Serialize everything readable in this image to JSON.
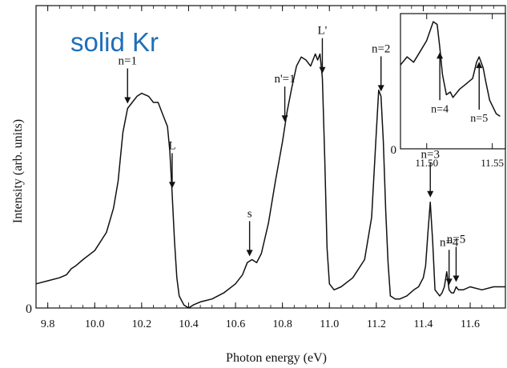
{
  "chart_data": {
    "type": "line",
    "title": "solid Kr",
    "title_color": "#1f6fb8",
    "xlabel": "Photon energy (eV)",
    "ylabel": "Intensity (arb. units)",
    "xlim": [
      9.75,
      11.75
    ],
    "ylim": [
      0,
      1.0
    ],
    "x_ticks": [
      9.8,
      10.0,
      10.2,
      10.4,
      10.6,
      10.8,
      11.0,
      11.2,
      11.4,
      11.6
    ],
    "x_tick_labels": [
      "9.8",
      "10.0",
      "10.2",
      "10.4",
      "10.6",
      "10.8",
      "11.0",
      "11.2",
      "11.4",
      "11.6"
    ],
    "y_tick_labels": [
      "0"
    ],
    "line_color": "#111111",
    "series": [
      {
        "x": [
          9.75,
          9.8,
          9.85,
          9.88,
          9.9,
          9.92,
          9.95,
          10.0,
          10.05,
          10.08,
          10.1,
          10.12,
          10.14,
          10.16,
          10.18,
          10.2,
          10.23,
          10.25,
          10.27,
          10.29,
          10.31,
          10.32,
          10.33,
          10.34,
          10.35,
          10.36,
          10.38,
          10.4,
          10.42,
          10.45,
          10.5,
          10.55,
          10.6,
          10.63,
          10.65,
          10.67,
          10.69,
          10.71,
          10.74,
          10.77,
          10.8,
          10.82,
          10.84,
          10.86,
          10.88,
          10.9,
          10.92,
          10.94,
          10.95,
          10.96,
          10.97,
          10.98,
          10.99,
          11.0,
          11.02,
          11.05,
          11.1,
          11.15,
          11.18,
          11.2,
          11.21,
          11.22,
          11.23,
          11.24,
          11.25,
          11.26,
          11.28,
          11.3,
          11.33,
          11.36,
          11.38,
          11.4,
          11.41,
          11.42,
          11.43,
          11.44,
          11.45,
          11.47,
          11.48,
          11.49,
          11.5,
          11.51,
          11.52,
          11.53,
          11.54,
          11.55,
          11.57,
          11.6,
          11.65,
          11.7,
          11.75
        ],
        "y": [
          0.08,
          0.09,
          0.1,
          0.11,
          0.13,
          0.14,
          0.16,
          0.19,
          0.25,
          0.33,
          0.42,
          0.58,
          0.66,
          0.68,
          0.7,
          0.71,
          0.7,
          0.68,
          0.68,
          0.64,
          0.6,
          0.52,
          0.38,
          0.22,
          0.1,
          0.04,
          0.01,
          0.0,
          0.01,
          0.02,
          0.03,
          0.05,
          0.08,
          0.11,
          0.15,
          0.16,
          0.15,
          0.18,
          0.28,
          0.42,
          0.55,
          0.65,
          0.73,
          0.8,
          0.83,
          0.82,
          0.8,
          0.84,
          0.82,
          0.84,
          0.76,
          0.5,
          0.2,
          0.08,
          0.06,
          0.07,
          0.1,
          0.16,
          0.3,
          0.58,
          0.72,
          0.7,
          0.55,
          0.32,
          0.15,
          0.04,
          0.03,
          0.03,
          0.04,
          0.06,
          0.07,
          0.1,
          0.14,
          0.25,
          0.35,
          0.22,
          0.06,
          0.04,
          0.05,
          0.07,
          0.12,
          0.06,
          0.05,
          0.05,
          0.07,
          0.06,
          0.06,
          0.07,
          0.06,
          0.07,
          0.07
        ]
      }
    ],
    "annotations": [
      {
        "label": "n=1",
        "x": 10.14
      },
      {
        "label": "L",
        "x": 10.33
      },
      {
        "label": "s",
        "x": 10.66
      },
      {
        "label": "n'=1",
        "x": 10.81
      },
      {
        "label": "L'",
        "x": 10.97
      },
      {
        "label": "n=2",
        "x": 11.22
      },
      {
        "label": "n=3",
        "x": 11.43
      },
      {
        "label": "n=4",
        "x": 11.51
      },
      {
        "label": "n=5",
        "x": 11.54
      }
    ],
    "inset": {
      "type": "line",
      "xlim": [
        11.48,
        11.56
      ],
      "ylim": [
        0,
        1.0
      ],
      "x_ticks": [
        11.5,
        11.55
      ],
      "x_tick_labels": [
        "11.50",
        "11.55"
      ],
      "y_tick_labels": [
        "0"
      ],
      "series": [
        {
          "x": [
            11.48,
            11.485,
            11.49,
            11.495,
            11.5,
            11.505,
            11.508,
            11.51,
            11.512,
            11.515,
            11.518,
            11.52,
            11.525,
            11.53,
            11.535,
            11.538,
            11.54,
            11.543,
            11.545,
            11.548,
            11.55,
            11.553,
            11.556
          ],
          "y": [
            0.62,
            0.68,
            0.64,
            0.72,
            0.8,
            0.94,
            0.92,
            0.75,
            0.55,
            0.4,
            0.42,
            0.38,
            0.44,
            0.48,
            0.52,
            0.64,
            0.68,
            0.6,
            0.5,
            0.36,
            0.32,
            0.26,
            0.24
          ]
        }
      ],
      "annotations": [
        {
          "label": "n=4",
          "x": 11.51
        },
        {
          "label": "n=5",
          "x": 11.54
        }
      ]
    }
  }
}
